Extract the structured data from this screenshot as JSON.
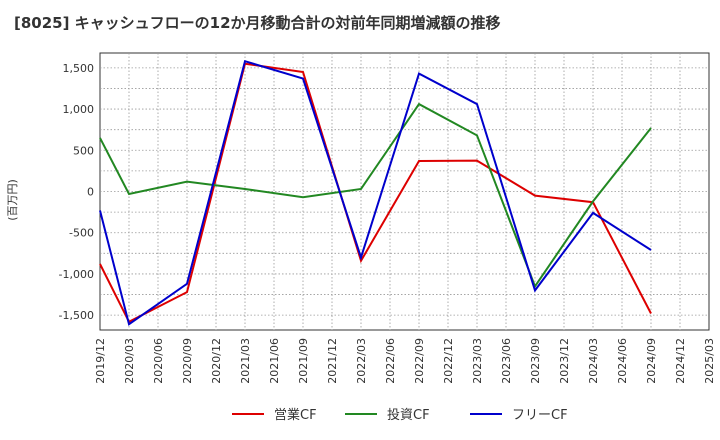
{
  "chart_data": {
    "type": "line",
    "title": "[8025]  キャッシュフローの12か月移動合計の対前年同期増減額の推移",
    "xlabel": "",
    "ylabel": "(百万円)",
    "ylim": [
      -1680,
      1680
    ],
    "yticks": [
      -1500,
      -1000,
      -500,
      0,
      500,
      1000,
      1500
    ],
    "ytick_labels": [
      "-1,500",
      "-1,000",
      "-500",
      "0",
      "500",
      "1,000",
      "1,500"
    ],
    "categories": [
      "2019/12",
      "2020/03",
      "2020/06",
      "2020/09",
      "2020/12",
      "2021/03",
      "2021/06",
      "2021/09",
      "2021/12",
      "2022/03",
      "2022/06",
      "2022/09",
      "2022/12",
      "2023/03",
      "2023/06",
      "2023/09",
      "2023/12",
      "2024/03",
      "2024/06",
      "2024/09",
      "2024/12",
      "2025/03"
    ],
    "grid": true,
    "legend_position": "bottom",
    "series": [
      {
        "name": "営業CF",
        "color": "#dd0000",
        "values": [
          -880,
          -1580,
          null,
          -1220,
          null,
          1550,
          null,
          1450,
          null,
          -840,
          null,
          370,
          null,
          375,
          null,
          -50,
          null,
          -130,
          null,
          -1480,
          null,
          null
        ]
      },
      {
        "name": "投資CF",
        "color": "#228822",
        "values": [
          650,
          -30,
          null,
          120,
          null,
          30,
          null,
          -70,
          null,
          30,
          null,
          1060,
          null,
          680,
          null,
          -1150,
          null,
          -120,
          null,
          770,
          null,
          null
        ]
      },
      {
        "name": "フリーCF",
        "color": "#0000cc",
        "values": [
          -230,
          -1610,
          null,
          -1120,
          null,
          1580,
          null,
          1370,
          null,
          -800,
          null,
          1430,
          null,
          1060,
          null,
          -1200,
          null,
          -260,
          null,
          -710,
          null,
          null
        ]
      }
    ]
  }
}
